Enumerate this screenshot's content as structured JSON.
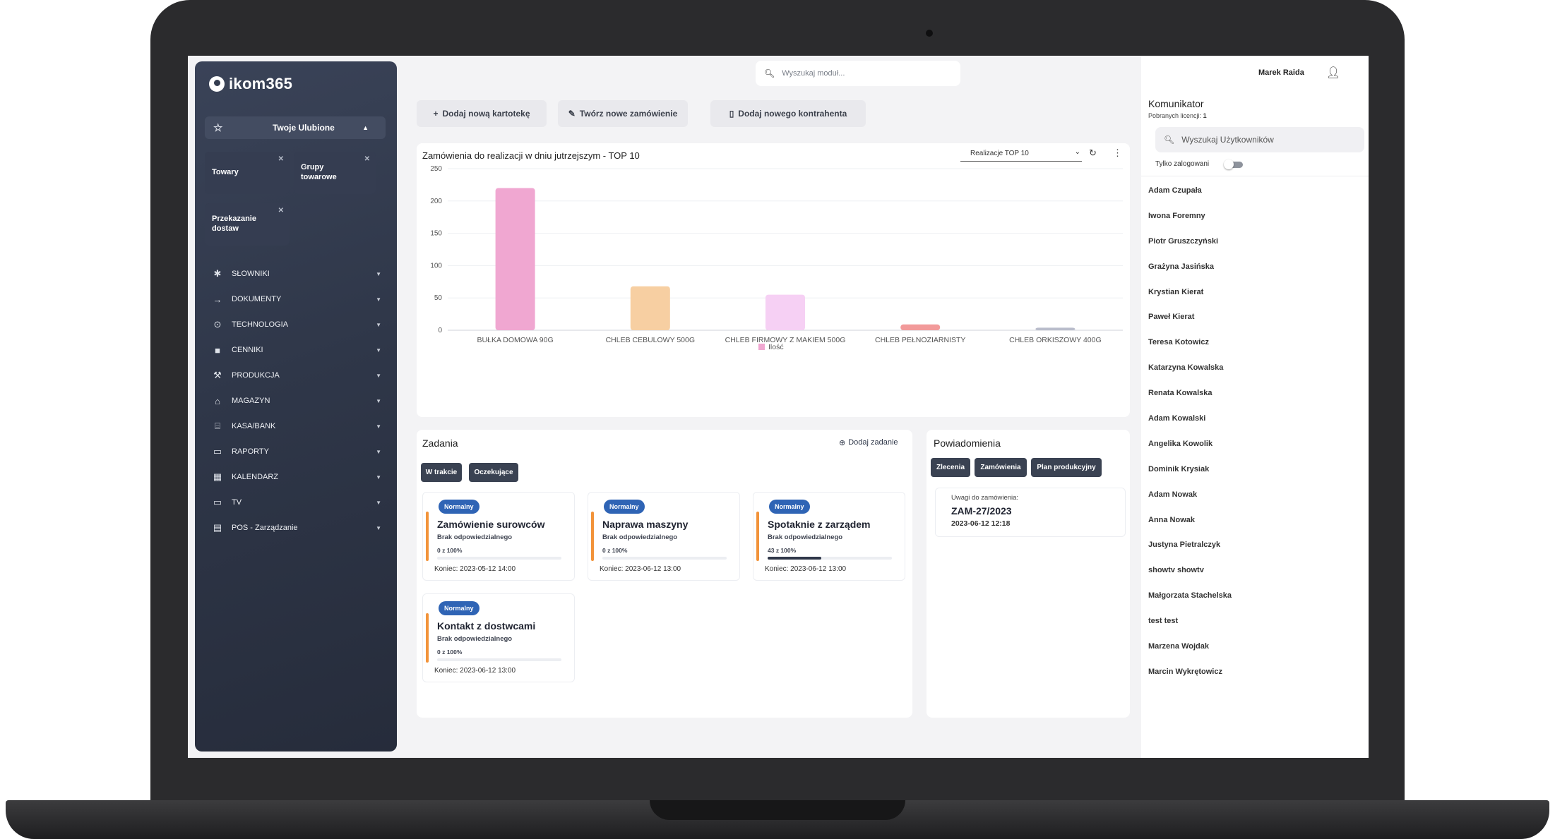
{
  "app": {
    "logo_text": "ikom365"
  },
  "search": {
    "placeholder": "Wyszukaj moduł..."
  },
  "favorites": {
    "label": "Twoje Ulubione",
    "tiles": [
      {
        "label": "Towary"
      },
      {
        "label": "Grupy towarowe"
      },
      {
        "label": "Przekazanie dostaw"
      }
    ]
  },
  "menu": [
    {
      "label": "SŁOWNIKI",
      "icon": "bluetooth-icon"
    },
    {
      "label": "DOKUMENTY",
      "icon": "arrow-right-icon"
    },
    {
      "label": "TECHNOLOGIA",
      "icon": "target-icon"
    },
    {
      "label": "CENNIKI",
      "icon": "price-icon"
    },
    {
      "label": "PRODUKCJA",
      "icon": "production-icon"
    },
    {
      "label": "MAGAZYN",
      "icon": "warehouse-icon"
    },
    {
      "label": "KASA/BANK",
      "icon": "bank-icon"
    },
    {
      "label": "RAPORTY",
      "icon": "report-icon"
    },
    {
      "label": "KALENDARZ",
      "icon": "calendar-icon"
    },
    {
      "label": "TV",
      "icon": "tv-icon"
    },
    {
      "label": "POS - Zarządzanie",
      "icon": "pos-icon"
    }
  ],
  "actions": [
    {
      "label": "Dodaj nową kartotekę",
      "icon": "plus-icon"
    },
    {
      "label": "Twórz nowe zamówienie",
      "icon": "new-order-icon"
    },
    {
      "label": "Dodaj nowego kontrahenta",
      "icon": "document-icon"
    }
  ],
  "chart_card": {
    "title": "Zamówienia do realizacji w dniu jutrzejszym - TOP 10",
    "select_value": "Realizacje TOP 10"
  },
  "chart_data": {
    "type": "bar",
    "categories": [
      "BUŁKA DOMOWA 90G",
      "CHLEB CEBULOWY 500G",
      "CHLEB FIRMOWY Z MAKIEM 500G",
      "CHLEB PEŁNOZIARNISTY",
      "CHLEB ORKISZOWY 400G"
    ],
    "series": [
      {
        "name": "Ilość",
        "values": [
          220,
          68,
          55,
          9,
          4
        ]
      }
    ],
    "colors": [
      "#f0a7d1",
      "#f7cfa2",
      "#f6d0f4",
      "#f29a9a",
      "#b9bccb"
    ],
    "legend_color": "#f0a7d1",
    "ylim": [
      0,
      250
    ],
    "yticks": [
      0,
      50,
      100,
      150,
      200,
      250
    ],
    "legend": "bottom",
    "grid": true
  },
  "tasks": {
    "title": "Zadania",
    "add_label": "Dodaj zadanie",
    "filters": [
      "W trakcie",
      "Oczekujące"
    ],
    "items": [
      {
        "badge": "Normalny",
        "name": "Zamówienie surowców",
        "responsible": "Brak odpowiedzialnego",
        "progress_label": "0 z 100%",
        "progress": 0,
        "end": "Koniec: 2023-05-12 14:00"
      },
      {
        "badge": "Normalny",
        "name": "Naprawa maszyny",
        "responsible": "Brak odpowiedzialnego",
        "progress_label": "0 z 100%",
        "progress": 0,
        "end": "Koniec: 2023-06-12 13:00"
      },
      {
        "badge": "Normalny",
        "name": "Spotaknie z zarządem",
        "responsible": "Brak odpowiedzialnego",
        "progress_label": "43 z 100%",
        "progress": 43,
        "end": "Koniec: 2023-06-12 13:00"
      },
      {
        "badge": "Normalny",
        "name": "Kontakt z dostwcami",
        "responsible": "Brak odpowiedzialnego",
        "progress_label": "0 z 100%",
        "progress": 0,
        "end": "Koniec: 2023-06-12 13:00"
      }
    ]
  },
  "notifications": {
    "title": "Powiadomienia",
    "filters": [
      "Zlecenia",
      "Zamówienia",
      "Plan produkcyjny"
    ],
    "item": {
      "label": "Uwagi do zamówienia:",
      "number": "ZAM-27/2023",
      "date": "2023-06-12 12:18"
    }
  },
  "user": {
    "name": "Marek Raida"
  },
  "communicator": {
    "title": "Komunikator",
    "licenses_label": "Pobranych licencji:",
    "licenses_count": "1",
    "search_placeholder": "Wyszukaj Użytkowników",
    "only_logged_label": "Tylko zalogowani",
    "users": [
      "Adam Czupała",
      "Iwona Foremny",
      "Piotr Gruszczyński",
      "Grażyna Jasińska",
      "Krystian Kierat",
      "Paweł Kierat",
      "Teresa Kotowicz",
      "Katarzyna Kowalska",
      "Renata Kowalska",
      "Adam Kowalski",
      "Angelika Kowolik",
      "Dominik Krysiak",
      "Adam Nowak",
      "Anna Nowak",
      "Justyna Pietralczyk",
      "showtv showtv",
      "Małgorzata Stachelska",
      "test test",
      "Marzena Wojdak",
      "Marcin Wykrętowicz"
    ]
  },
  "colors": {
    "sidebar": "#2f3749",
    "badge": "#2f64b5",
    "task_accent": "#f2933a",
    "button_dark": "#3a4252"
  }
}
